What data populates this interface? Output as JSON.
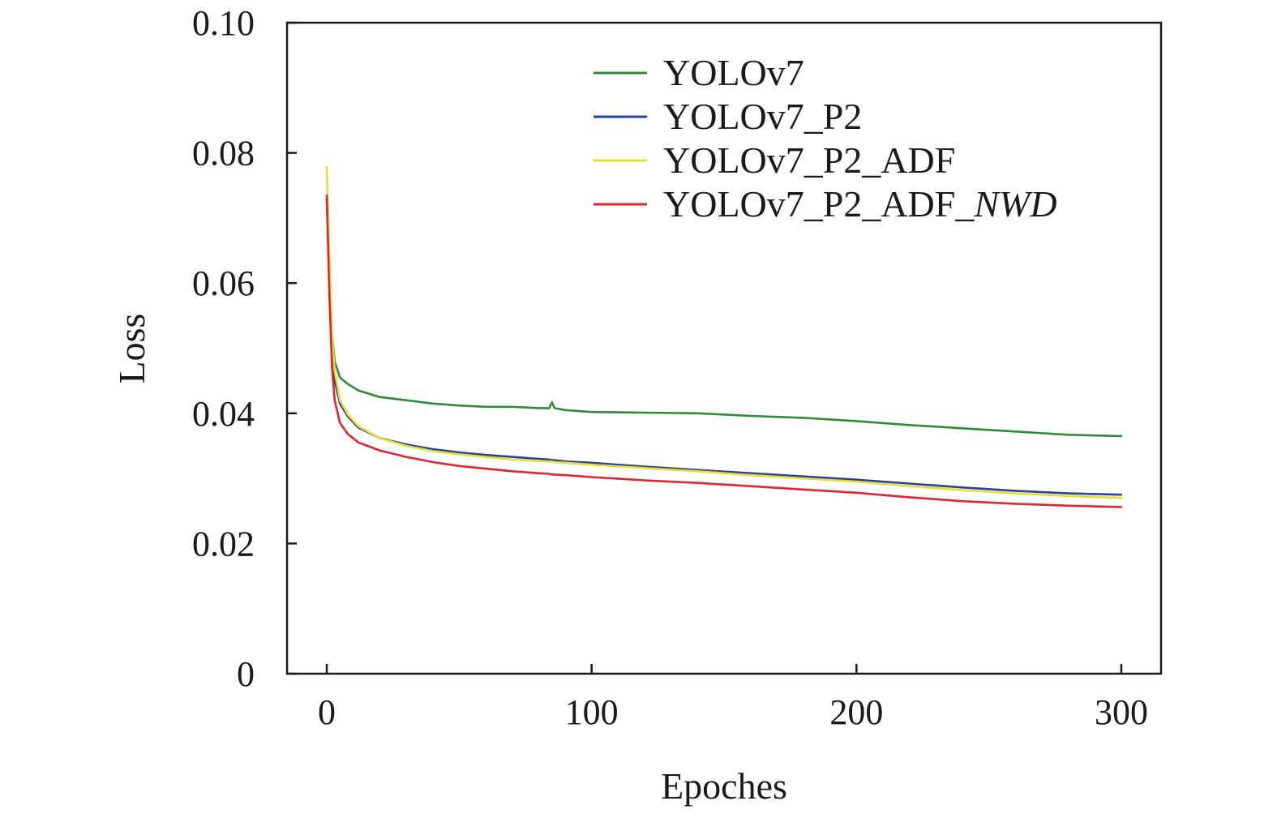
{
  "chart_data": {
    "type": "line",
    "xlabel": "Epoches",
    "ylabel": "Loss",
    "xlim": [
      -15,
      315
    ],
    "ylim": [
      0,
      0.1
    ],
    "xticks": [
      0,
      100,
      200,
      300
    ],
    "xtick_labels": [
      "0",
      "100",
      "200",
      "300"
    ],
    "yticks": [
      0,
      0.02,
      0.04,
      0.06,
      0.08,
      0.1
    ],
    "ytick_labels": [
      "0",
      "0.02",
      "0.04",
      "0.06",
      "0.08",
      "0.10"
    ],
    "legend_position": "top-right",
    "grid": false,
    "x": [
      0,
      1,
      2,
      3,
      5,
      8,
      12,
      20,
      30,
      40,
      50,
      60,
      70,
      80,
      84,
      85,
      86,
      90,
      100,
      120,
      140,
      160,
      180,
      200,
      220,
      240,
      260,
      280,
      300
    ],
    "series": [
      {
        "name": "YOLOv7",
        "name_suffix": "",
        "color": "#2e8b3a",
        "values": [
          0.073,
          0.062,
          0.052,
          0.048,
          0.0455,
          0.0445,
          0.0435,
          0.0425,
          0.042,
          0.0415,
          0.0412,
          0.041,
          0.041,
          0.0408,
          0.0408,
          0.0417,
          0.0408,
          0.0405,
          0.0402,
          0.0401,
          0.04,
          0.0396,
          0.0393,
          0.0388,
          0.0382,
          0.0377,
          0.0372,
          0.0367,
          0.0365
        ]
      },
      {
        "name": "YOLOv7_P2",
        "name_suffix": "",
        "color": "#2b3f9e",
        "values": [
          0.073,
          0.06,
          0.05,
          0.045,
          0.0415,
          0.0395,
          0.0378,
          0.0362,
          0.0352,
          0.0345,
          0.034,
          0.0336,
          0.0333,
          0.033,
          0.0329,
          0.0328,
          0.0328,
          0.0326,
          0.0324,
          0.0318,
          0.0313,
          0.0308,
          0.0303,
          0.0298,
          0.0292,
          0.0286,
          0.0281,
          0.0277,
          0.0275
        ]
      },
      {
        "name": "YOLOv7_P2_ADF",
        "name_suffix": "",
        "color": "#e3e032",
        "values": [
          0.0778,
          0.064,
          0.052,
          0.0465,
          0.042,
          0.0398,
          0.038,
          0.0362,
          0.035,
          0.0342,
          0.0337,
          0.0333,
          0.0329,
          0.0327,
          0.0326,
          0.0326,
          0.0325,
          0.0324,
          0.0321,
          0.0316,
          0.0311,
          0.0305,
          0.03,
          0.0295,
          0.0288,
          0.0282,
          0.0277,
          0.0273,
          0.027
        ]
      },
      {
        "name": "YOLOv7_P2_ADF_",
        "name_suffix": "NWD",
        "color": "#e2242f",
        "values": [
          0.0735,
          0.058,
          0.047,
          0.042,
          0.0385,
          0.0368,
          0.0355,
          0.0343,
          0.0333,
          0.0325,
          0.0319,
          0.0315,
          0.0311,
          0.0308,
          0.0307,
          0.0306,
          0.0306,
          0.0305,
          0.0302,
          0.0297,
          0.0293,
          0.0288,
          0.0283,
          0.0278,
          0.0271,
          0.0265,
          0.0261,
          0.0258,
          0.0256
        ]
      }
    ]
  }
}
